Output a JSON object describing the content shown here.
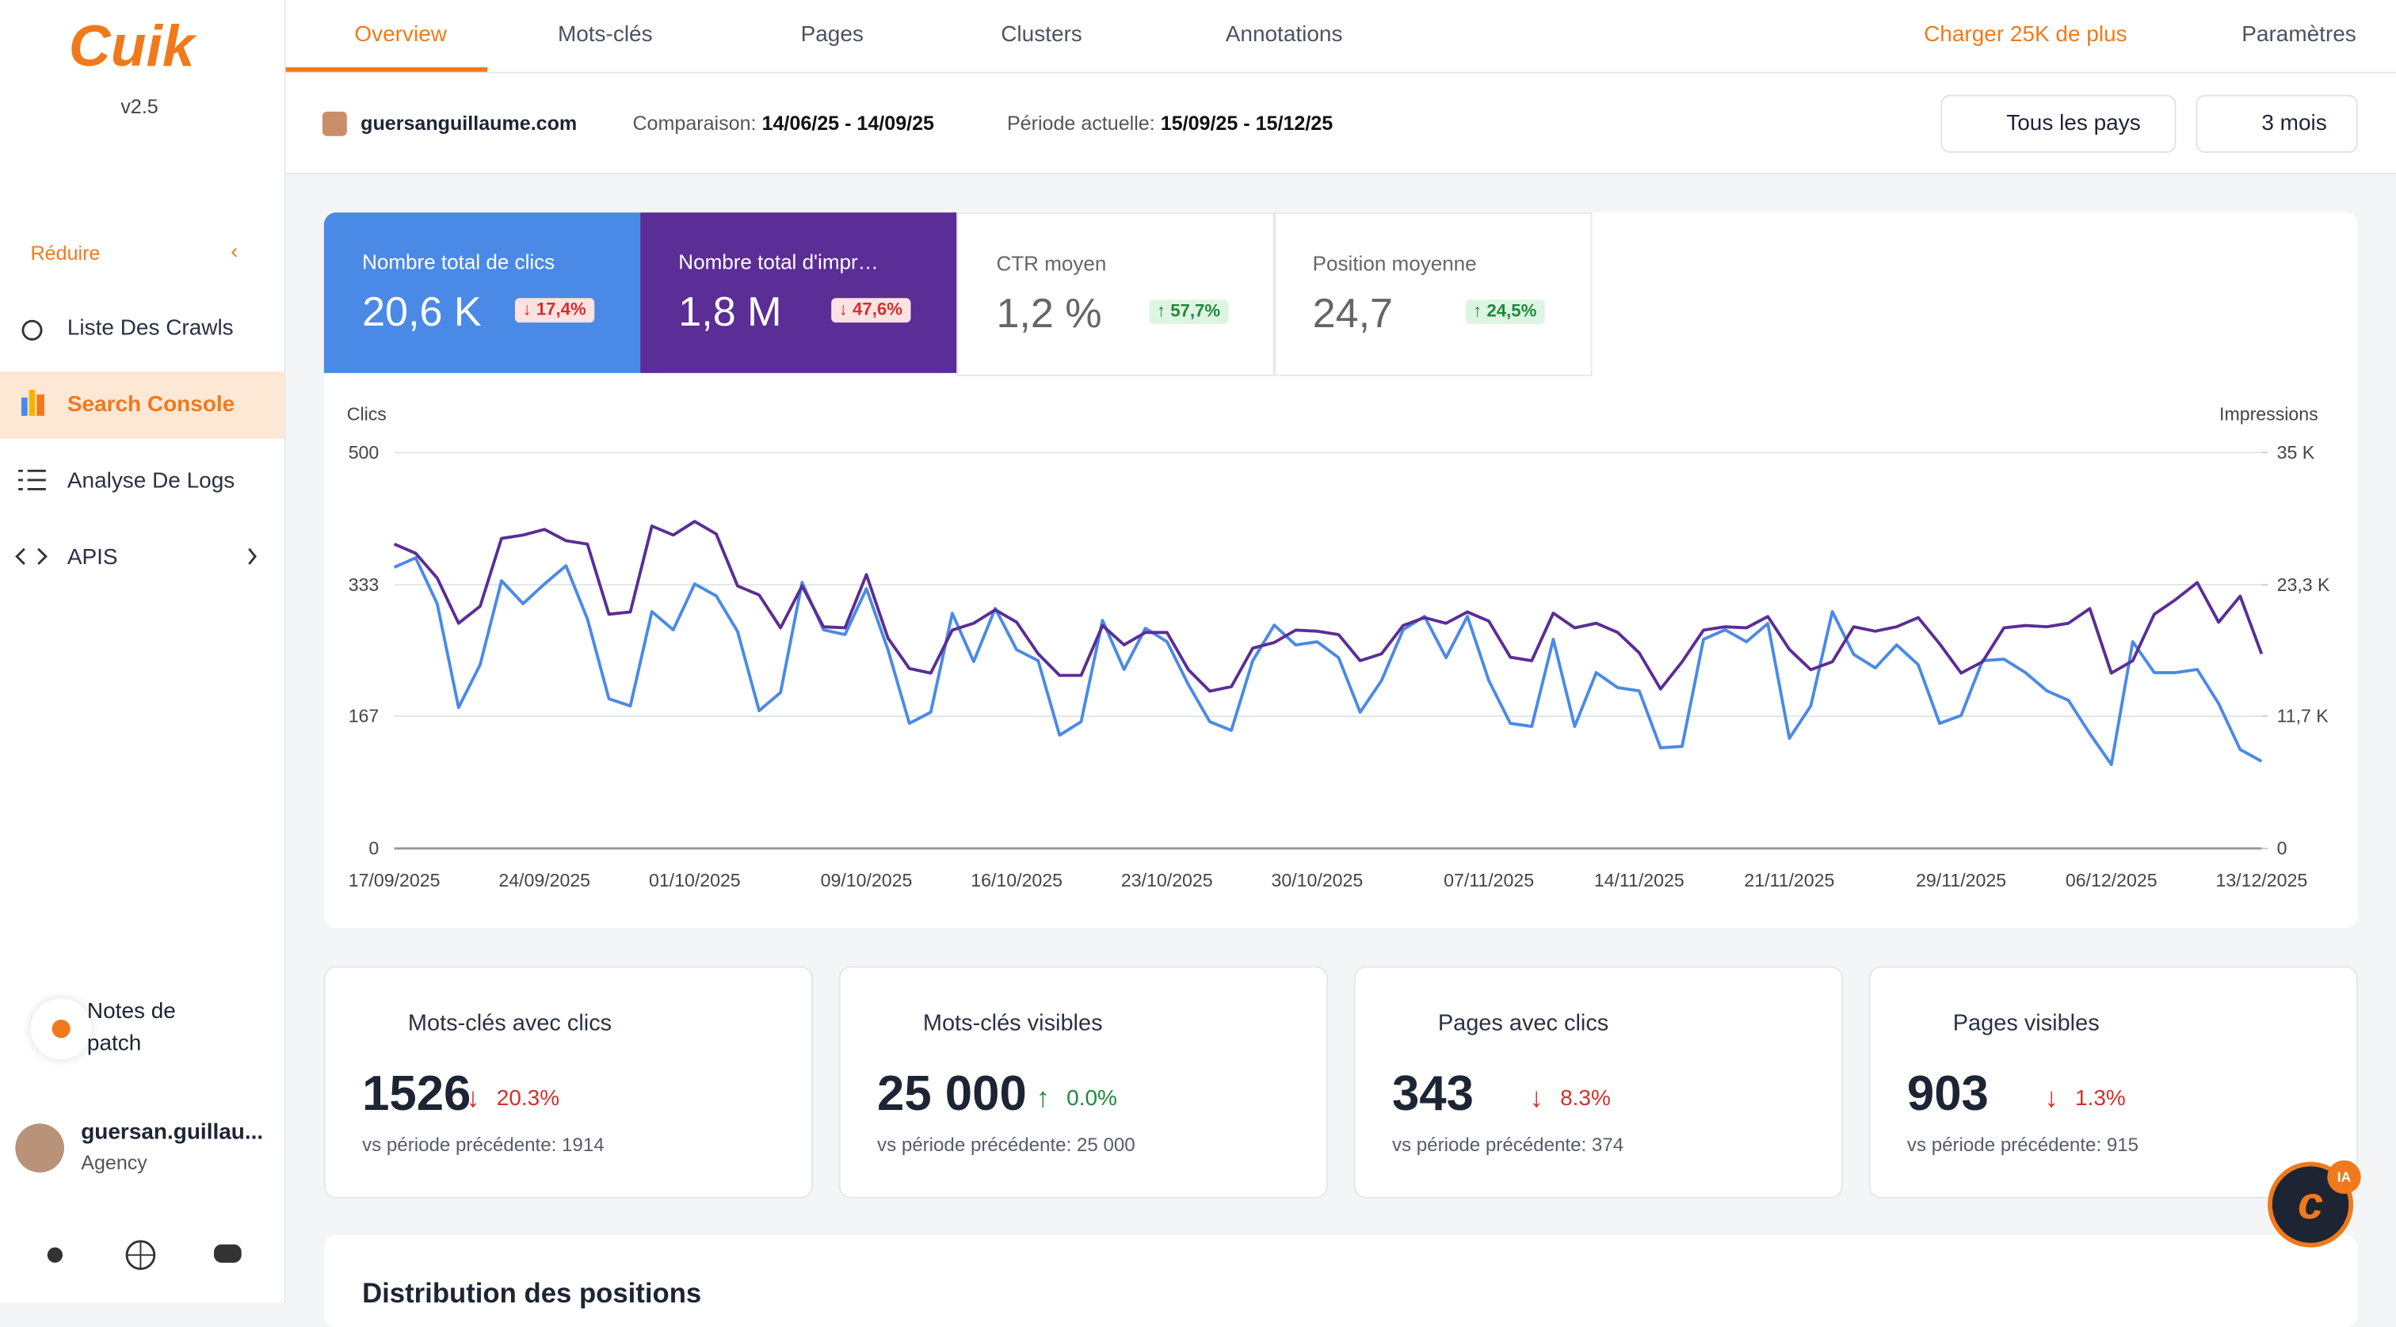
{
  "logo": {
    "name": "Cuik",
    "version": "v2.5"
  },
  "nav": {
    "collapse": "Réduire",
    "items": [
      "Liste Des Crawls",
      "Search Console",
      "Analyse De Logs",
      "APIS"
    ]
  },
  "patch_notes": "Notes de patch",
  "user": {
    "name": "guersan.guillau...",
    "role": "Agency"
  },
  "tabs": [
    "Overview",
    "Mots-clés",
    "Pages",
    "Clusters",
    "Annotations"
  ],
  "top_actions": {
    "upgrade": "Charger 25K de plus",
    "settings": "Paramètres"
  },
  "context": {
    "site": "guersanguillaume.com",
    "comparison_label": "Comparaison:",
    "comparison": "14/06/25 - 14/09/25",
    "current_label": "Période actuelle:",
    "current": "15/09/25 - 15/12/25",
    "country": "Tous les pays",
    "range": "3 mois"
  },
  "metrics": [
    {
      "label": "Nombre total de clics",
      "value": "20,6 K",
      "change": "↓ 17,4%"
    },
    {
      "label": "Nombre total d'impr…",
      "value": "1,8 M",
      "change": "↓ 47,6%"
    },
    {
      "label": "CTR moyen",
      "value": "1,2 %",
      "change": "↑ 57,7%"
    },
    {
      "label": "Position moyenne",
      "value": "24,7",
      "change": "↑ 24,5%"
    }
  ],
  "chart_data": {
    "type": "line",
    "ylabel": "Clics",
    "y2label": "Impressions",
    "categories": [
      "17/09/2025",
      null,
      null,
      null,
      null,
      null,
      null,
      "24/09/2025",
      null,
      null,
      null,
      null,
      null,
      null,
      "01/10/2025",
      null,
      null,
      null,
      null,
      null,
      null,
      null,
      "09/10/2025",
      null,
      null,
      null,
      null,
      null,
      null,
      "16/10/2025",
      null,
      null,
      null,
      null,
      null,
      null,
      "23/10/2025",
      null,
      null,
      null,
      null,
      null,
      null,
      "30/10/2025",
      null,
      null,
      null,
      null,
      null,
      null,
      null,
      "07/11/2025",
      null,
      null,
      null,
      null,
      null,
      null,
      "14/11/2025",
      null,
      null,
      null,
      null,
      null,
      null,
      "21/11/2025",
      null,
      null,
      null,
      null,
      null,
      null,
      null,
      "29/11/2025",
      null,
      null,
      null,
      null,
      null,
      null,
      "06/12/2025",
      null,
      null,
      null,
      null,
      null,
      null,
      "13/12/2025"
    ],
    "series": [
      {
        "name": "Clics",
        "color": "#4a8ae6",
        "values": [
          355,
          367,
          309,
          178,
          232,
          338,
          309,
          334,
          357,
          290,
          189,
          180,
          299,
          276,
          334,
          319,
          274,
          174,
          197,
          336,
          276,
          270,
          328,
          251,
          158,
          172,
          297,
          236,
          303,
          251,
          237,
          143,
          160,
          288,
          226,
          278,
          261,
          207,
          160,
          149,
          237,
          282,
          257,
          261,
          241,
          172,
          212,
          276,
          293,
          241,
          293,
          212,
          158,
          154,
          264,
          154,
          222,
          203,
          199,
          127,
          129,
          264,
          276,
          261,
          284,
          139,
          180,
          299,
          245,
          228,
          257,
          232,
          158,
          168,
          237,
          239,
          222,
          199,
          187,
          145,
          106,
          261,
          222,
          222,
          226,
          183,
          125,
          110
        ]
      },
      {
        "name": "Impressions",
        "color": "#5b2d96",
        "axis": "y2",
        "values": [
          26900,
          26100,
          23900,
          19900,
          21400,
          27400,
          27700,
          28200,
          27200,
          26900,
          20700,
          20900,
          28500,
          27700,
          28900,
          27800,
          23200,
          22400,
          19500,
          23200,
          19600,
          19500,
          24200,
          18600,
          15900,
          15500,
          19300,
          19900,
          21100,
          20000,
          17200,
          15300,
          15300,
          19700,
          18000,
          19100,
          19100,
          15800,
          13900,
          14300,
          17700,
          18200,
          19300,
          19200,
          18900,
          16600,
          17200,
          19700,
          20400,
          19900,
          20900,
          20100,
          16900,
          16600,
          20800,
          19500,
          19900,
          19100,
          17300,
          14100,
          16500,
          19300,
          19600,
          19500,
          20500,
          17600,
          15800,
          16500,
          19600,
          19200,
          19600,
          20400,
          18100,
          15500,
          16500,
          19500,
          19700,
          19600,
          19900,
          21200,
          15500,
          16600,
          20700,
          22000,
          23500,
          20000,
          22300,
          17200
        ]
      }
    ],
    "ylim": [
      0,
      500
    ],
    "yticks": [
      0,
      167,
      333,
      500
    ],
    "y2lim": [
      0,
      35000
    ],
    "y2ticks": [
      0,
      {
        "value": 11700,
        "label": "11,7 K"
      },
      {
        "value": 23300,
        "label": "23,3 K"
      },
      {
        "value": 35000,
        "label": "35 K"
      }
    ],
    "grid": true
  },
  "stats": [
    {
      "label": "Mots-clés avec clics",
      "value": "1526",
      "change": "20.3%",
      "previous": "vs période précédente: 1914",
      "trend": "down"
    },
    {
      "label": "Mots-clés visibles",
      "value": "25 000",
      "change": "0.0%",
      "previous": "vs période précédente: 25 000",
      "trend": "up"
    },
    {
      "label": "Pages avec clics",
      "value": "343",
      "change": "8.3%",
      "previous": "vs période précédente: 374",
      "trend": "down"
    },
    {
      "label": "Pages visibles",
      "value": "903",
      "change": "1.3%",
      "previous": "vs période précédente: 915",
      "trend": "down"
    }
  ],
  "section_title": "Distribution des positions",
  "assistant_badge": "IA"
}
